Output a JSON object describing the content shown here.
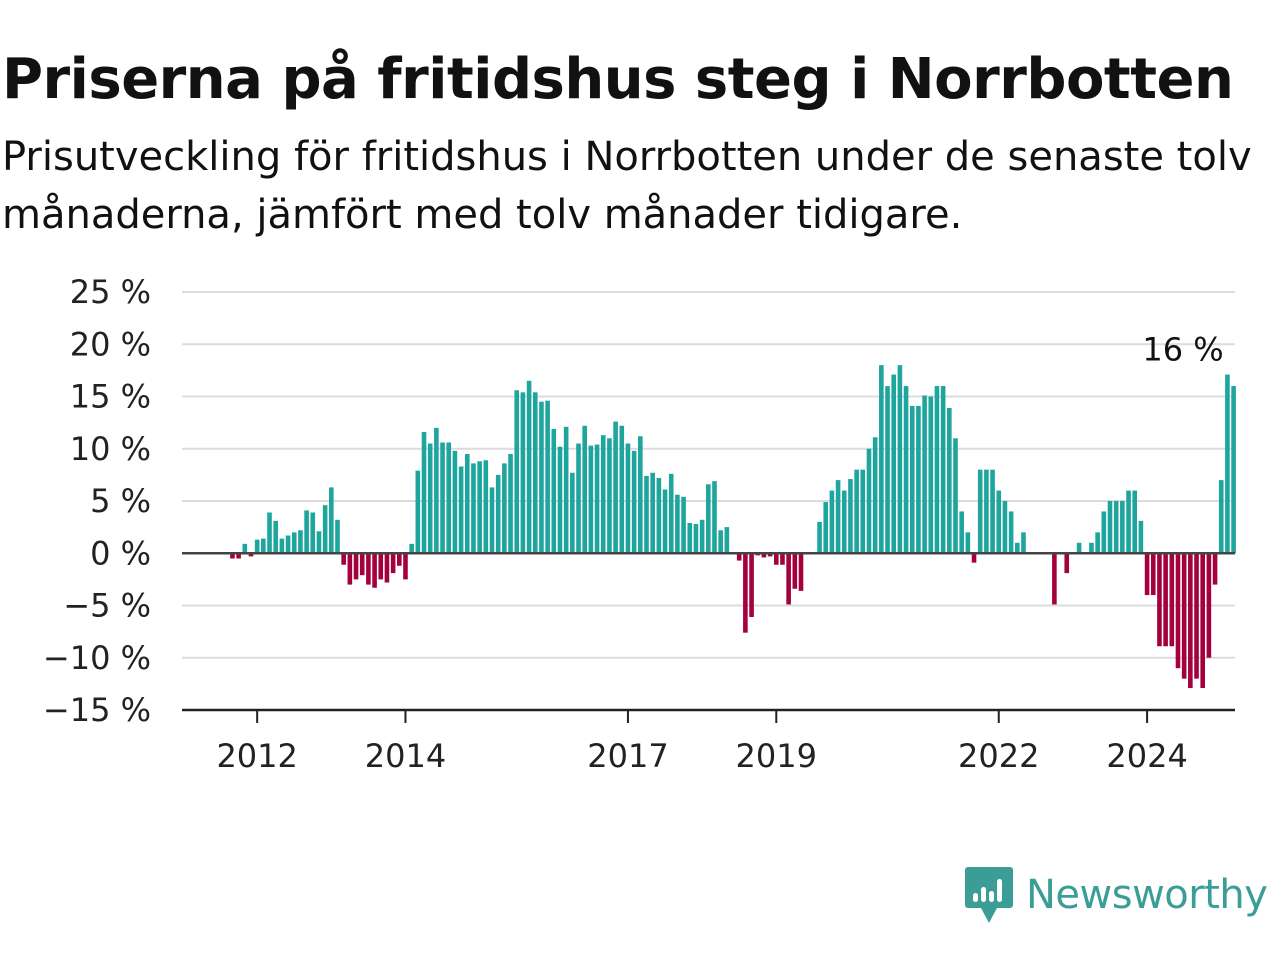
{
  "title": "Priserna på fritidshus steg i Norrbotten",
  "subtitle": "Prisutveckling för fritidshus i Norrbotten under de senaste tolv månaderna, jämfört med tolv månader tidigare.",
  "brand": "Newsworthy",
  "colors": {
    "positive": "#1ea59d",
    "negative": "#a4003d",
    "grid": "#dcdcdc",
    "axis": "#444444",
    "brand": "#3a9e96"
  },
  "chart_data": {
    "type": "bar",
    "start": "2011-01",
    "frequency": "monthly",
    "ylim": [
      -15,
      25
    ],
    "yticks": [
      -15,
      -10,
      -5,
      0,
      5,
      10,
      15,
      20,
      25
    ],
    "ytick_labels": [
      "−15 %",
      "−10 %",
      "−5 %",
      "0 %",
      "5 %",
      "10 %",
      "15 %",
      "20 %",
      "25 %"
    ],
    "xtick_labels": [
      "2012",
      "2014",
      "2017",
      "2019",
      "2022",
      "2024"
    ],
    "last_label": "16 %",
    "grid": true,
    "values": [
      null,
      null,
      null,
      null,
      null,
      null,
      null,
      null,
      -0.5,
      -0.5,
      0.9,
      -0.3,
      1.3,
      1.4,
      3.9,
      3.1,
      1.4,
      1.7,
      2.0,
      2.2,
      4.1,
      3.9,
      2.1,
      4.6,
      6.3,
      3.2,
      -1.1,
      -3.0,
      -2.5,
      -2.1,
      -3.0,
      -3.3,
      -2.5,
      -2.8,
      -1.9,
      -1.2,
      -2.5,
      0.9,
      7.9,
      11.6,
      10.5,
      12.0,
      10.6,
      10.6,
      9.8,
      8.3,
      9.5,
      8.6,
      8.8,
      8.9,
      6.3,
      7.5,
      8.6,
      9.5,
      15.6,
      15.4,
      16.5,
      15.4,
      14.5,
      14.6,
      11.9,
      10.2,
      12.1,
      7.7,
      10.5,
      12.2,
      10.3,
      10.4,
      11.3,
      11.0,
      12.6,
      12.2,
      10.5,
      9.8,
      11.2,
      7.4,
      7.7,
      7.2,
      6.1,
      7.6,
      5.6,
      5.4,
      2.9,
      2.8,
      3.2,
      6.6,
      6.9,
      2.2,
      2.5,
      null,
      -0.7,
      -7.6,
      -6.1,
      -0.2,
      -0.4,
      -0.3,
      -1.1,
      -1.1,
      -4.9,
      -3.4,
      -3.6,
      null,
      null,
      3.0,
      4.9,
      6.0,
      7.0,
      6.0,
      7.1,
      8.0,
      8.0,
      10.0,
      11.1,
      18.0,
      16.0,
      17.1,
      18.0,
      16.0,
      14.1,
      14.1,
      15.1,
      15.0,
      16.0,
      16.0,
      13.9,
      11.0,
      4.0,
      2.0,
      -0.9,
      8.0,
      8.0,
      8.0,
      6.0,
      5.0,
      4.0,
      1.0,
      2.0,
      null,
      null,
      null,
      null,
      -4.9,
      null,
      -1.9,
      null,
      1.0,
      null,
      1.0,
      2.0,
      4.0,
      5.0,
      5.0,
      5.0,
      6.0,
      6.0,
      3.1,
      -4.0,
      -4.0,
      -8.9,
      -8.9,
      -8.9,
      -11.0,
      -12.0,
      -12.9,
      -12.0,
      -12.9,
      -10.0,
      -3.0,
      7.0,
      17.1,
      16.0
    ]
  }
}
